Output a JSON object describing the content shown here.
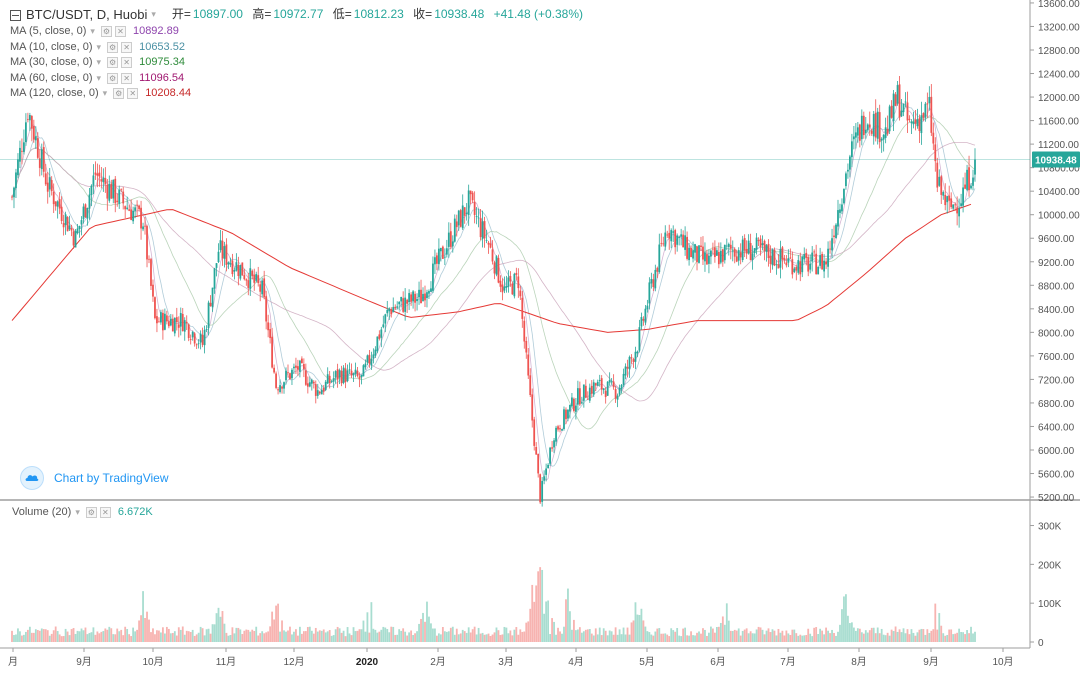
{
  "symbol": {
    "title": "BTC/USDT, D, Huobi",
    "open_label": "开=",
    "open": "10897.00",
    "high_label": "高=",
    "high": "10972.77",
    "low_label": "低=",
    "low": "10812.23",
    "close_label": "收=",
    "close": "10938.48",
    "change": "+41.48 (+0.38%)"
  },
  "indicators": [
    {
      "label": "MA (5, close, 0)",
      "value": "10892.89",
      "color": "#8e44ad"
    },
    {
      "label": "MA (10, close, 0)",
      "value": "10653.52",
      "color": "#4a90a4"
    },
    {
      "label": "MA (30, close, 0)",
      "value": "10975.34",
      "color": "#2e8b3a"
    },
    {
      "label": "MA (60, close, 0)",
      "value": "11096.54",
      "color": "#a01870"
    },
    {
      "label": "MA (120, close, 0)",
      "value": "10208.44",
      "color": "#c62828"
    }
  ],
  "volume": {
    "label": "Volume (20)",
    "value": "6.672K"
  },
  "branding": {
    "text": "Chart by TradingView"
  },
  "price_tag": "10938.48",
  "colors": {
    "up": "#26a69a",
    "down": "#ef5350",
    "up_vol": "#a8ddd0",
    "down_vol": "#f7b3b0",
    "ma120": "#e53935",
    "ma": "#9e9e9e",
    "price_line": "#26a69a"
  },
  "chart_data": {
    "type": "candlestick",
    "price_axis": {
      "ticks": [
        "13600.00",
        "13200.00",
        "12800.00",
        "12400.00",
        "12000.00",
        "11600.00",
        "11200.00",
        "10800.00",
        "10400.00",
        "10000.00",
        "9600.00",
        "9200.00",
        "8800.00",
        "8400.00",
        "8000.00",
        "7600.00",
        "7200.00",
        "6800.00",
        "6400.00",
        "6000.00",
        "5600.00",
        "5200.00"
      ],
      "range": [
        5150,
        13650
      ]
    },
    "volume_axis": {
      "ticks": [
        "300K",
        "200K",
        "100K",
        "0"
      ],
      "range": [
        0,
        340000
      ]
    },
    "time_axis": {
      "labels": [
        "月",
        "9月",
        "10月",
        "11月",
        "12月",
        "2020",
        "2月",
        "3月",
        "4月",
        "5月",
        "6月",
        "7月",
        "8月",
        "9月",
        "10月"
      ],
      "bold": "2020"
    },
    "price_path": [
      {
        "day": 0,
        "price": 10300
      },
      {
        "day": 8,
        "price": 11800
      },
      {
        "day": 18,
        "price": 10500
      },
      {
        "day": 26,
        "price": 10000
      },
      {
        "day": 32,
        "price": 9600
      },
      {
        "day": 42,
        "price": 10700
      },
      {
        "day": 56,
        "price": 10200
      },
      {
        "day": 66,
        "price": 9900
      },
      {
        "day": 72,
        "price": 8200
      },
      {
        "day": 86,
        "price": 8200
      },
      {
        "day": 96,
        "price": 7800
      },
      {
        "day": 104,
        "price": 9400
      },
      {
        "day": 116,
        "price": 9050
      },
      {
        "day": 126,
        "price": 8700
      },
      {
        "day": 133,
        "price": 7100
      },
      {
        "day": 144,
        "price": 7400
      },
      {
        "day": 154,
        "price": 7000
      },
      {
        "day": 165,
        "price": 7300
      },
      {
        "day": 176,
        "price": 7200
      },
      {
        "day": 190,
        "price": 8400
      },
      {
        "day": 206,
        "price": 8600
      },
      {
        "day": 222,
        "price": 9700
      },
      {
        "day": 230,
        "price": 10200
      },
      {
        "day": 240,
        "price": 9500
      },
      {
        "day": 248,
        "price": 8700
      },
      {
        "day": 255,
        "price": 8900
      },
      {
        "day": 259,
        "price": 7500
      },
      {
        "day": 266,
        "price": 5200
      },
      {
        "day": 273,
        "price": 6300
      },
      {
        "day": 285,
        "price": 6900
      },
      {
        "day": 294,
        "price": 7100
      },
      {
        "day": 305,
        "price": 7000
      },
      {
        "day": 315,
        "price": 7800
      },
      {
        "day": 322,
        "price": 8800
      },
      {
        "day": 330,
        "price": 9800
      },
      {
        "day": 340,
        "price": 9400
      },
      {
        "day": 350,
        "price": 9200
      },
      {
        "day": 362,
        "price": 9400
      },
      {
        "day": 375,
        "price": 9400
      },
      {
        "day": 386,
        "price": 9250
      },
      {
        "day": 398,
        "price": 9150
      },
      {
        "day": 410,
        "price": 9200
      },
      {
        "day": 422,
        "price": 11000
      },
      {
        "day": 430,
        "price": 11700
      },
      {
        "day": 440,
        "price": 11400
      },
      {
        "day": 446,
        "price": 12000
      },
      {
        "day": 452,
        "price": 11500
      },
      {
        "day": 462,
        "price": 11800
      },
      {
        "day": 466,
        "price": 10500
      },
      {
        "day": 472,
        "price": 10100
      },
      {
        "day": 478,
        "price": 10300
      },
      {
        "day": 485,
        "price": 10900
      }
    ],
    "volume_spike_days": [
      66,
      104,
      133,
      180,
      208,
      262,
      266,
      270,
      280,
      315,
      360,
      420,
      465
    ],
    "ma120_path": [
      {
        "day": 0,
        "price": 8200
      },
      {
        "day": 40,
        "price": 9800
      },
      {
        "day": 80,
        "price": 10100
      },
      {
        "day": 110,
        "price": 9700
      },
      {
        "day": 140,
        "price": 9100
      },
      {
        "day": 175,
        "price": 8600
      },
      {
        "day": 200,
        "price": 8250
      },
      {
        "day": 225,
        "price": 8350
      },
      {
        "day": 245,
        "price": 8500
      },
      {
        "day": 275,
        "price": 8150
      },
      {
        "day": 300,
        "price": 8000
      },
      {
        "day": 320,
        "price": 8050
      },
      {
        "day": 345,
        "price": 8200
      },
      {
        "day": 370,
        "price": 8200
      },
      {
        "day": 395,
        "price": 8200
      },
      {
        "day": 410,
        "price": 8450
      },
      {
        "day": 430,
        "price": 9000
      },
      {
        "day": 450,
        "price": 9600
      },
      {
        "day": 468,
        "price": 10000
      },
      {
        "day": 485,
        "price": 10200
      }
    ],
    "last_price": 10938.48
  }
}
